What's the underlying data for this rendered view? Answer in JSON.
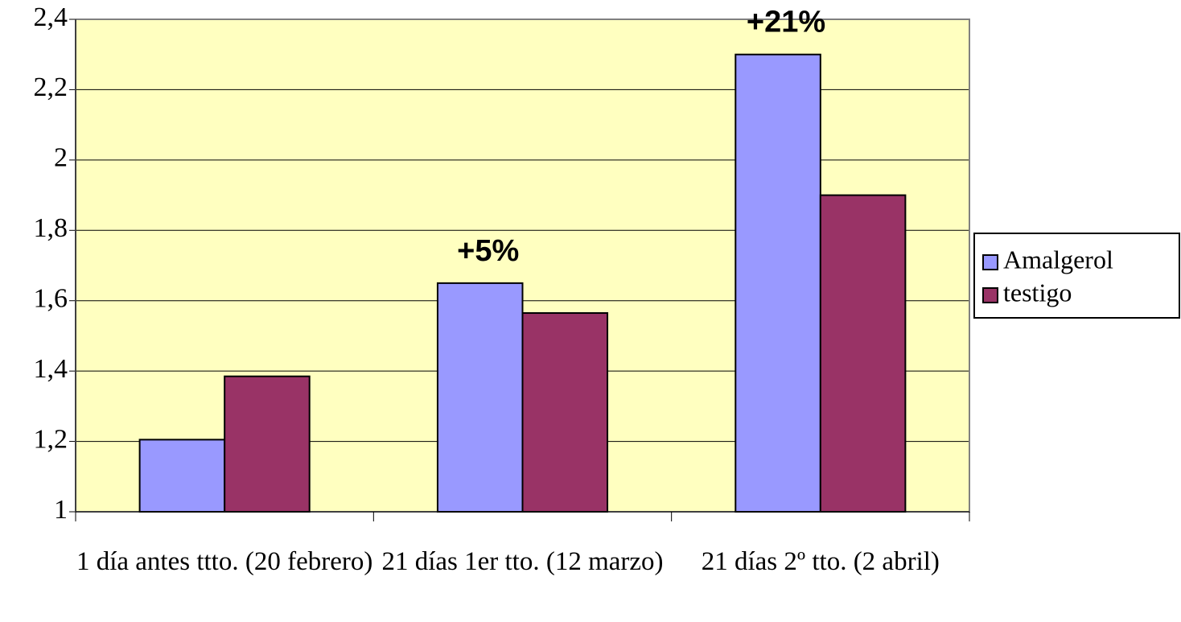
{
  "chart_data": {
    "type": "bar",
    "categories": [
      "1 día antes ttto. (20 febrero)",
      "21 días 1er tto. (12 marzo)",
      "21 días 2º tto. (2 abril)"
    ],
    "series": [
      {
        "name": "Amalgerol",
        "color": "#9999ff",
        "values": [
          1.205,
          1.65,
          2.3
        ]
      },
      {
        "name": "testigo",
        "color": "#993366",
        "values": [
          1.385,
          1.565,
          1.9
        ]
      }
    ],
    "annotations": [
      null,
      "+5%",
      "+21%"
    ],
    "ylim": [
      1,
      2.4
    ],
    "yticks": [
      1,
      {
        "value": 1.2,
        "label": "1,2"
      },
      {
        "value": 1.4,
        "label": "1,4"
      },
      {
        "value": 1.6,
        "label": "1,6"
      },
      {
        "value": 1.8,
        "label": "1,8"
      },
      2,
      {
        "value": 2.2,
        "label": "2,2"
      },
      {
        "value": 2.4,
        "label": "2,4"
      }
    ],
    "grid": true,
    "legend": "right",
    "plot_background": "#ffffc0"
  }
}
